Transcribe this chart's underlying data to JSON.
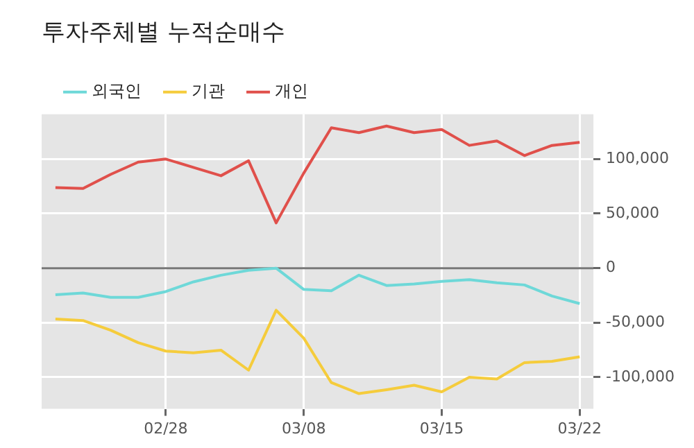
{
  "chart_data": {
    "type": "line",
    "title": "투자주체별 누적순매수",
    "categories": [
      null,
      null,
      null,
      null,
      "02/28",
      null,
      null,
      null,
      null,
      "03/08",
      null,
      null,
      null,
      null,
      "03/15",
      null,
      null,
      null,
      null,
      "03/22"
    ],
    "series": [
      {
        "name": "외국인",
        "color": "#6ed8d8",
        "values": [
          -24400,
          -22800,
          -26800,
          -26800,
          -21500,
          -12600,
          -6500,
          -2000,
          0,
          -19500,
          -20700,
          -6500,
          -15900,
          -14600,
          -12200,
          -10600,
          -13400,
          -15400,
          -25600,
          -32500
        ]
      },
      {
        "name": "기관",
        "color": "#f5cc3c",
        "values": [
          -46700,
          -48000,
          -56900,
          -68300,
          -76000,
          -77600,
          -75200,
          -93500,
          -38600,
          -64200,
          -104900,
          -115000,
          -111400,
          -107300,
          -113400,
          -100000,
          -101600,
          -86600,
          -85400,
          -81300
        ]
      },
      {
        "name": "개인",
        "color": "#e0504b",
        "values": [
          73800,
          73000,
          85900,
          97200,
          100000,
          92300,
          84700,
          98400,
          41500,
          87100,
          128600,
          124200,
          130200,
          124200,
          127000,
          112500,
          116500,
          103200,
          112500,
          115300
        ]
      }
    ],
    "ylim": [
      -129000,
      141000
    ],
    "yticks": [
      {
        "value": -100000,
        "label": "-100,000"
      },
      {
        "value": -50000,
        "label": "-50,000"
      },
      0,
      {
        "value": 50000,
        "label": "50,000"
      },
      {
        "value": 100000,
        "label": "100,000"
      }
    ],
    "ref_lines": [
      {
        "axis": "y",
        "value": 0,
        "color": "#777777"
      }
    ],
    "grid": true,
    "legend": "top left",
    "line_style": "solid",
    "marker": "none"
  }
}
